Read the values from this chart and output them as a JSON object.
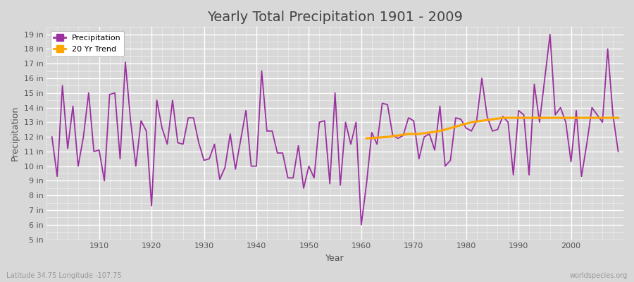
{
  "title": "Yearly Total Precipitation 1901 - 2009",
  "xlabel": "Year",
  "ylabel": "Precipitation",
  "years": [
    1901,
    1902,
    1903,
    1904,
    1905,
    1906,
    1907,
    1908,
    1909,
    1910,
    1911,
    1912,
    1913,
    1914,
    1915,
    1916,
    1917,
    1918,
    1919,
    1920,
    1921,
    1922,
    1923,
    1924,
    1925,
    1926,
    1927,
    1928,
    1929,
    1930,
    1931,
    1932,
    1933,
    1934,
    1935,
    1936,
    1937,
    1938,
    1939,
    1940,
    1941,
    1942,
    1943,
    1944,
    1945,
    1946,
    1947,
    1948,
    1949,
    1950,
    1951,
    1952,
    1953,
    1954,
    1955,
    1956,
    1957,
    1958,
    1959,
    1960,
    1961,
    1962,
    1963,
    1964,
    1965,
    1966,
    1967,
    1968,
    1969,
    1970,
    1971,
    1972,
    1973,
    1974,
    1975,
    1976,
    1977,
    1978,
    1979,
    1980,
    1981,
    1982,
    1983,
    1984,
    1985,
    1986,
    1987,
    1988,
    1989,
    1990,
    1991,
    1992,
    1993,
    1994,
    1995,
    1996,
    1997,
    1998,
    1999,
    2000,
    2001,
    2002,
    2003,
    2004,
    2005,
    2006,
    2007,
    2008,
    2009
  ],
  "precip": [
    12.0,
    9.3,
    15.5,
    11.2,
    14.1,
    10.0,
    12.0,
    15.0,
    11.0,
    11.1,
    9.0,
    14.9,
    15.0,
    10.5,
    17.1,
    13.1,
    10.0,
    13.1,
    12.4,
    7.3,
    14.5,
    12.6,
    11.5,
    14.5,
    11.6,
    11.5,
    13.3,
    13.3,
    11.6,
    10.4,
    10.5,
    11.5,
    9.1,
    9.9,
    12.2,
    9.8,
    11.8,
    13.8,
    10.0,
    10.0,
    16.5,
    12.4,
    12.4,
    10.9,
    10.9,
    9.2,
    9.2,
    11.4,
    8.5,
    10.0,
    9.2,
    13.0,
    13.1,
    8.8,
    15.0,
    8.7,
    13.0,
    11.5,
    13.0,
    6.0,
    8.8,
    12.3,
    11.5,
    14.3,
    14.2,
    12.1,
    11.9,
    12.1,
    13.3,
    13.1,
    10.5,
    12.0,
    12.2,
    11.1,
    14.1,
    10.0,
    10.4,
    13.3,
    13.2,
    12.6,
    12.4,
    13.1,
    16.0,
    13.4,
    12.4,
    12.5,
    13.4,
    13.0,
    9.4,
    13.8,
    13.5,
    9.4,
    15.6,
    13.0,
    16.0,
    19.0,
    13.5,
    14.0,
    13.0,
    10.3,
    13.8,
    9.3,
    11.5,
    14.0,
    13.5,
    13.0,
    18.0,
    13.5,
    11.0
  ],
  "trend_start_year": 1961,
  "trend": [
    11.9,
    11.92,
    11.95,
    11.97,
    12.0,
    12.05,
    12.1,
    12.15,
    12.2,
    12.2,
    12.2,
    12.25,
    12.3,
    12.35,
    12.4,
    12.5,
    12.6,
    12.7,
    12.8,
    12.9,
    13.0,
    13.05,
    13.1,
    13.15,
    13.2,
    13.25,
    13.3,
    13.3,
    13.3,
    13.3,
    13.3,
    13.3,
    13.3,
    13.3,
    13.3,
    13.3,
    13.3,
    13.3,
    13.3,
    13.3,
    13.3,
    13.3,
    13.3,
    13.3,
    13.3,
    13.3,
    13.3,
    13.3,
    13.3
  ],
  "precip_color": "#9b30a0",
  "trend_color": "#FFA500",
  "bg_color": "#d8d8d8",
  "plot_bg_color": "#d8d8d8",
  "grid_color_major": "#bbbbbb",
  "grid_color_minor": "#ffffff",
  "ylim_min": 5,
  "ylim_max": 19.5,
  "yticks": [
    5,
    6,
    7,
    8,
    9,
    10,
    11,
    12,
    13,
    14,
    15,
    16,
    17,
    18,
    19
  ],
  "xlim_min": 1900,
  "xlim_max": 2010,
  "xticks": [
    1910,
    1920,
    1930,
    1940,
    1950,
    1960,
    1970,
    1980,
    1990,
    2000
  ],
  "legend_labels": [
    "Precipitation",
    "20 Yr Trend"
  ],
  "footer_left": "Latitude 34.75 Longitude -107.75",
  "footer_right": "worldspecies.org",
  "title_fontsize": 14,
  "axis_label_fontsize": 9,
  "tick_fontsize": 8,
  "legend_fontsize": 8,
  "footer_fontsize": 7,
  "text_color": "#555555",
  "title_color": "#444444",
  "footer_color": "#999999"
}
